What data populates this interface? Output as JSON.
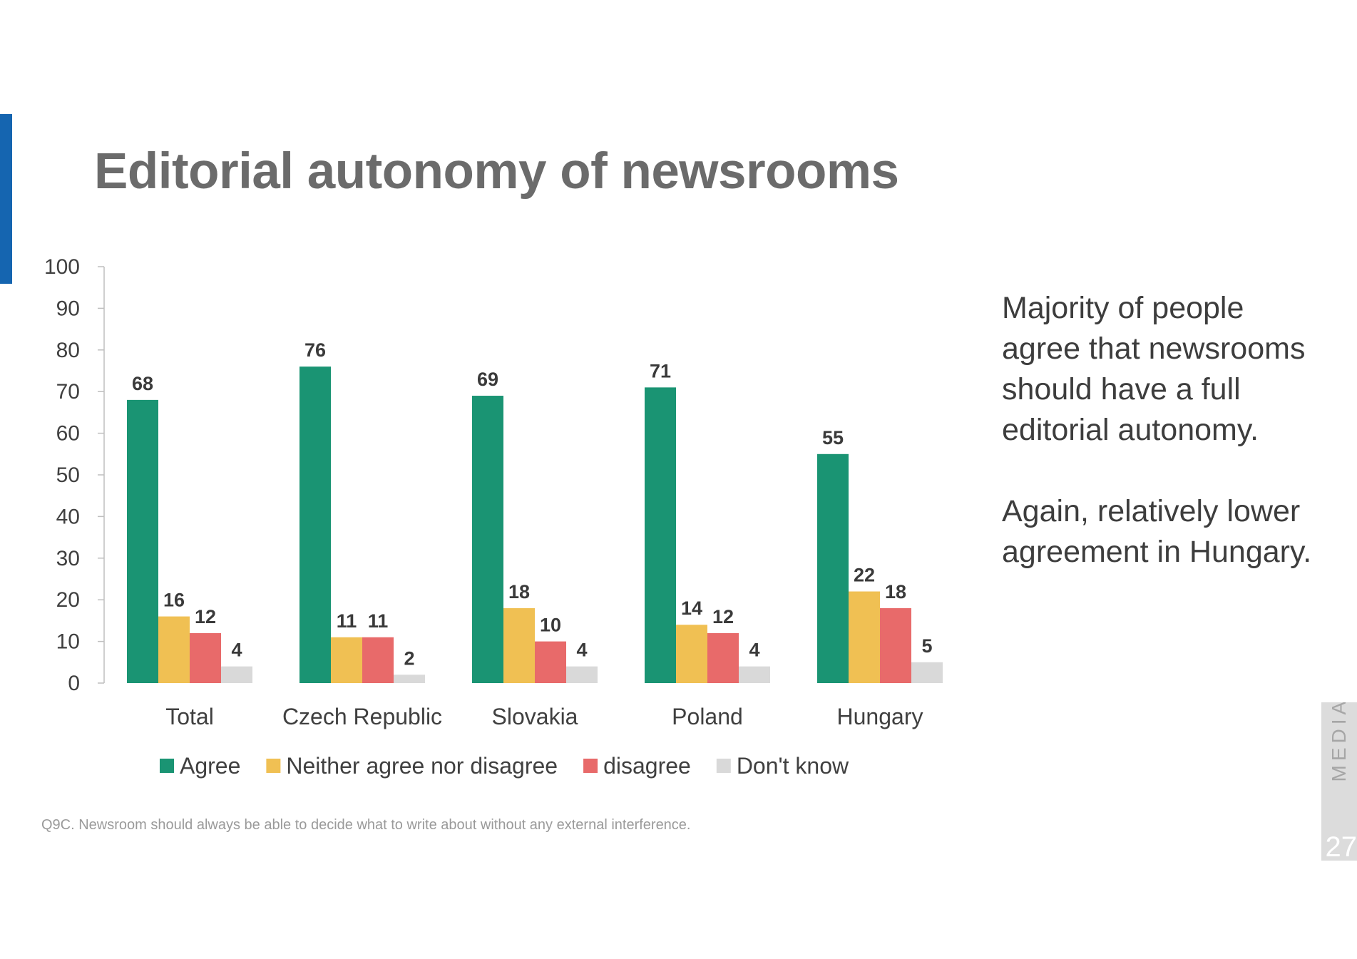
{
  "slide": {
    "title": "Editorial autonomy of newsrooms",
    "commentary": [
      "Majority of people agree that newsrooms should have a full editorial autonomy.",
      "Again, relatively lower agreement in Hungary."
    ],
    "footnote": "Q9C. Newsroom should always be able to decide what to write about without any external interference.",
    "brand": "MEDIAN",
    "page_number": "27",
    "accent_color": "#1565b0"
  },
  "chart_data": {
    "type": "bar",
    "categories": [
      "Total",
      "Czech Republic",
      "Slovakia",
      "Poland",
      "Hungary"
    ],
    "series": [
      {
        "name": "Agree",
        "color": "#1a9473",
        "values": [
          68,
          76,
          69,
          71,
          55
        ]
      },
      {
        "name": "Neither agree nor disagree",
        "color": "#f0c053",
        "values": [
          16,
          11,
          18,
          14,
          22
        ]
      },
      {
        "name": "disagree",
        "color": "#e86a6a",
        "values": [
          12,
          11,
          10,
          12,
          18
        ]
      },
      {
        "name": "Don't know",
        "color": "#d9d9d9",
        "values": [
          4,
          2,
          4,
          4,
          5
        ]
      }
    ],
    "ylim": [
      0,
      100
    ],
    "yticks": [
      0,
      10,
      20,
      30,
      40,
      50,
      60,
      70,
      80,
      90,
      100
    ],
    "legend_position": "bottom",
    "data_labels": true,
    "grid": false
  }
}
